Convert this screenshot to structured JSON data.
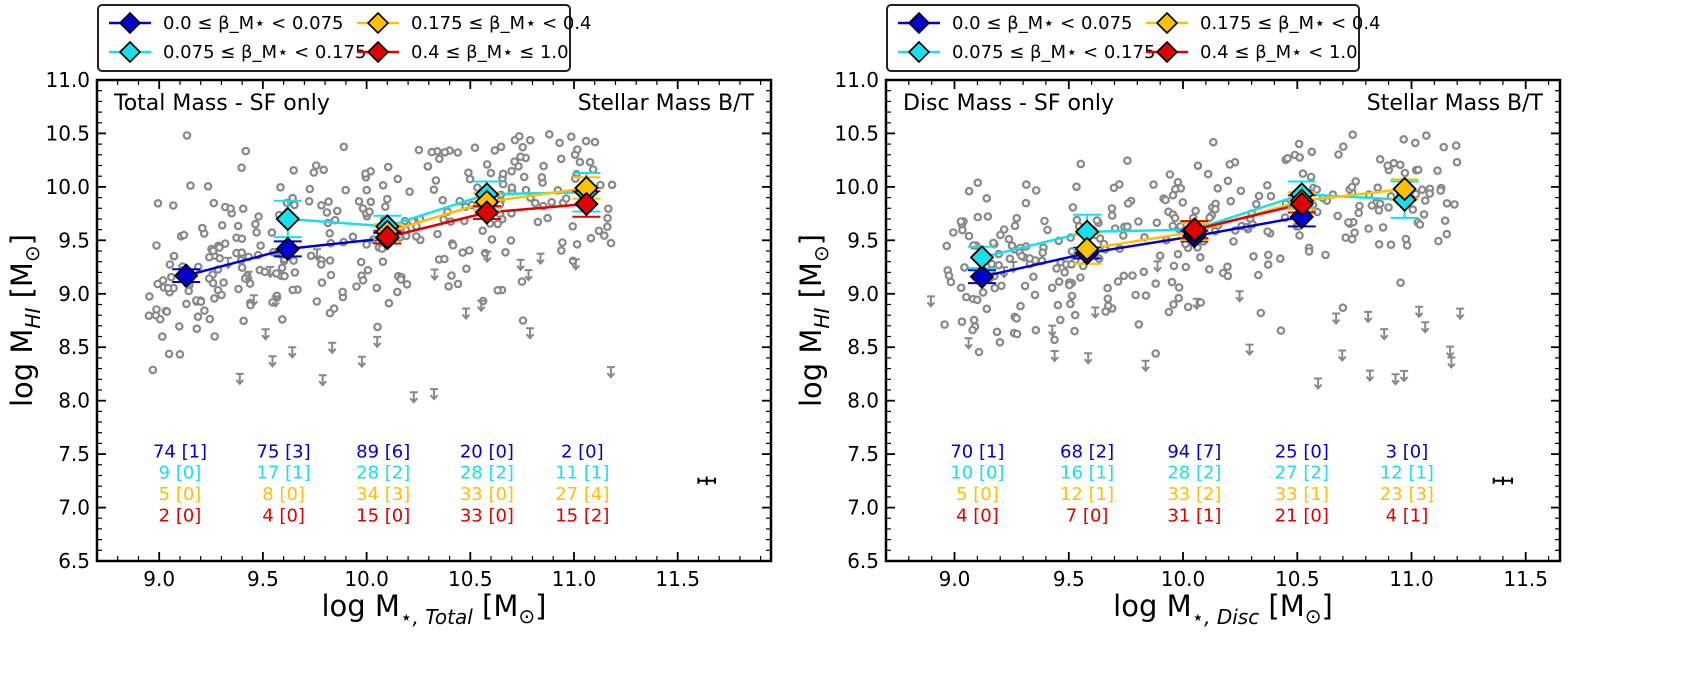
{
  "colors": {
    "bin1": "#0000d0",
    "bin2": "#19e0e8",
    "bin3": "#ffc000",
    "bin4": "#e00000",
    "scatter": "#888888",
    "axis": "#000000"
  },
  "chart_data": [
    {
      "type": "scatter",
      "panel": "left",
      "xlabel_main": "log M",
      "xlabel_sub": "⋆, Total",
      "xlabel_unit": " [M",
      "ylabel_main": "log M",
      "ylabel_sub": "HI",
      "ylabel_unit": " [M",
      "sun_symbol": "⊙",
      "close_bracket": "]",
      "xlim": [
        8.7,
        11.95
      ],
      "ylim": [
        6.5,
        11.0
      ],
      "xticks": [
        "9.0",
        "9.5",
        "10.0",
        "10.5",
        "11.0",
        "11.5"
      ],
      "xtick_values": [
        9.0,
        9.5,
        10.0,
        10.5,
        11.0,
        11.5
      ],
      "yticks": [
        "6.5",
        "7.0",
        "7.5",
        "8.0",
        "8.5",
        "9.0",
        "9.5",
        "10.0",
        "10.5",
        "11.0"
      ],
      "ytick_values": [
        6.5,
        7.0,
        7.5,
        8.0,
        8.5,
        9.0,
        9.5,
        10.0,
        10.5,
        11.0
      ],
      "annotation_left": "Total Mass - SF only",
      "annotation_right": "Stellar Mass B/T",
      "legend": [
        {
          "label": "0.0 ≤ β_M⋆ < 0.075",
          "color": "#0000d0"
        },
        {
          "label": "0.075 ≤ β_M⋆ < 0.175",
          "color": "#19e0e8"
        },
        {
          "label": "0.175 ≤ β_M⋆ < 0.4",
          "color": "#ffc000"
        },
        {
          "label": "0.4 ≤ β_M⋆ ≤ 1.0",
          "color": "#e00000"
        }
      ],
      "series": [
        {
          "name": "0.0-0.075",
          "color": "#0000d0",
          "x": [
            9.13,
            9.62,
            10.1
          ],
          "y": [
            9.17,
            9.42,
            9.52
          ],
          "err": [
            0.06,
            0.07,
            0.05
          ]
        },
        {
          "name": "0.075-0.175",
          "color": "#19e0e8",
          "x": [
            9.62,
            10.1,
            10.58,
            11.06
          ],
          "y": [
            9.7,
            9.63,
            9.93,
            9.95
          ],
          "err": [
            0.17,
            0.1,
            0.12,
            0.18
          ]
        },
        {
          "name": "0.175-0.4",
          "color": "#ffc000",
          "x": [
            10.1,
            10.58,
            11.06
          ],
          "y": [
            9.58,
            9.86,
            9.99
          ],
          "err": [
            0.07,
            0.08,
            0.1
          ]
        },
        {
          "name": "0.4-1.0",
          "color": "#e00000",
          "x": [
            10.1,
            10.58,
            11.06
          ],
          "y": [
            9.53,
            9.76,
            9.84
          ],
          "err": [
            0.06,
            0.06,
            0.12
          ]
        }
      ],
      "counts_x": [
        9.1,
        9.6,
        10.08,
        10.58,
        11.04
      ],
      "counts": [
        [
          "74 [1]",
          "75 [3]",
          "89 [6]",
          "20 [0]",
          "2 [0]"
        ],
        [
          "9 [0]",
          "17 [1]",
          "28 [2]",
          "28 [2]",
          "11 [1]"
        ],
        [
          "5 [0]",
          "8 [0]",
          "34 [3]",
          "33 [0]",
          "27 [4]"
        ],
        [
          "2 [0]",
          "4 [0]",
          "15 [0]",
          "33 [0]",
          "15 [2]"
        ]
      ],
      "typical_error": {
        "x": 11.64,
        "y": 7.25,
        "xerr": 0.04,
        "yerr": 0.04
      }
    },
    {
      "type": "scatter",
      "panel": "right",
      "xlabel_main": "log M",
      "xlabel_sub": "⋆, Disc",
      "xlabel_unit": " [M",
      "ylabel_main": "log M",
      "ylabel_sub": "HI",
      "ylabel_unit": " [M",
      "sun_symbol": "⊙",
      "close_bracket": "]",
      "xlim": [
        8.7,
        11.65
      ],
      "ylim": [
        6.5,
        11.0
      ],
      "xticks": [
        "9.0",
        "9.5",
        "10.0",
        "10.5",
        "11.0",
        "11.5"
      ],
      "xtick_values": [
        9.0,
        9.5,
        10.0,
        10.5,
        11.0,
        11.5
      ],
      "yticks": [
        "6.5",
        "7.0",
        "7.5",
        "8.0",
        "8.5",
        "9.0",
        "9.5",
        "10.0",
        "10.5",
        "11.0"
      ],
      "ytick_values": [
        6.5,
        7.0,
        7.5,
        8.0,
        8.5,
        9.0,
        9.5,
        10.0,
        10.5,
        11.0
      ],
      "annotation_left": "Disc Mass - SF only",
      "annotation_right": "Stellar Mass B/T",
      "legend": [
        {
          "label": "0.0 ≤ β_M⋆ < 0.075",
          "color": "#0000d0"
        },
        {
          "label": "0.075 ≤ β_M⋆ < 0.175",
          "color": "#19e0e8"
        },
        {
          "label": "0.175 ≤ β_M⋆ < 0.4",
          "color": "#ffc000"
        },
        {
          "label": "0.4 ≤ β_M⋆ < 1.0",
          "color": "#e00000"
        }
      ],
      "series": [
        {
          "name": "0.0-0.075",
          "color": "#0000d0",
          "x": [
            9.12,
            9.58,
            10.05,
            10.52
          ],
          "y": [
            9.16,
            9.38,
            9.54,
            9.72
          ],
          "err": [
            0.06,
            0.05,
            0.05,
            0.09
          ]
        },
        {
          "name": "0.075-0.175",
          "color": "#19e0e8",
          "x": [
            9.12,
            9.58,
            10.05,
            10.52,
            10.97
          ],
          "y": [
            9.34,
            9.58,
            9.6,
            9.93,
            9.88
          ],
          "err": [
            0.1,
            0.16,
            0.08,
            0.12,
            0.17
          ]
        },
        {
          "name": "0.175-0.4",
          "color": "#ffc000",
          "x": [
            9.58,
            10.05,
            10.52,
            10.97
          ],
          "y": [
            9.42,
            9.58,
            9.87,
            9.98
          ],
          "err": [
            0.14,
            0.08,
            0.08,
            0.09
          ]
        },
        {
          "name": "0.4-1.0",
          "color": "#e00000",
          "x": [
            10.05,
            10.52
          ],
          "y": [
            9.6,
            9.84
          ],
          "err": [
            0.08,
            0.08
          ]
        }
      ],
      "counts_x": [
        9.1,
        9.58,
        10.05,
        10.52,
        10.98
      ],
      "counts": [
        [
          "70 [1]",
          "68 [2]",
          "94 [7]",
          "25 [0]",
          "3 [0]"
        ],
        [
          "10 [0]",
          "16 [1]",
          "28 [2]",
          "27 [2]",
          "12 [1]"
        ],
        [
          "5 [0]",
          "12 [1]",
          "33 [2]",
          "33 [1]",
          "23 [3]"
        ],
        [
          "4 [0]",
          "7 [0]",
          "31 [1]",
          "21 [0]",
          "4 [1]"
        ]
      ],
      "typical_error": {
        "x": 11.4,
        "y": 7.25,
        "xerr": 0.04,
        "yerr": 0.04
      }
    }
  ]
}
